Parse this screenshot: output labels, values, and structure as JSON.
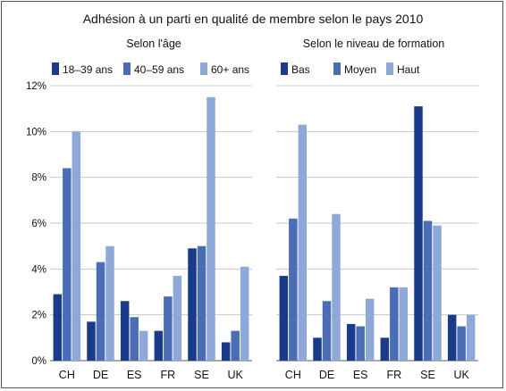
{
  "chart_data": {
    "type": "bar",
    "title": "Adhésion à un parti en qualité de membre selon le pays 2010",
    "yticks": [
      "0%",
      "2%",
      "4%",
      "6%",
      "8%",
      "10%",
      "12%"
    ],
    "ylim": [
      0,
      12
    ],
    "grid": true,
    "categories": [
      "CH",
      "DE",
      "ES",
      "FR",
      "SE",
      "UK"
    ],
    "colors": [
      "#1a3a8a",
      "#4a6db5",
      "#8ea8d8"
    ],
    "panels": [
      {
        "subtitle": "Selon l'âge",
        "series": [
          {
            "name": "18–39 ans",
            "values": [
              2.9,
              1.7,
              2.6,
              1.3,
              4.9,
              0.8
            ]
          },
          {
            "name": "40–59 ans",
            "values": [
              8.4,
              4.3,
              1.9,
              2.8,
              5.0,
              1.3
            ]
          },
          {
            "name": "60+ ans",
            "values": [
              10.0,
              5.0,
              1.3,
              3.7,
              11.5,
              4.1
            ]
          }
        ]
      },
      {
        "subtitle": "Selon le niveau de formation",
        "series": [
          {
            "name": "Bas",
            "values": [
              3.7,
              1.0,
              1.6,
              1.0,
              11.1,
              2.0
            ]
          },
          {
            "name": "Moyen",
            "values": [
              6.2,
              2.6,
              1.5,
              3.2,
              6.1,
              1.5
            ]
          },
          {
            "name": "Haut",
            "values": [
              10.3,
              6.4,
              2.7,
              3.2,
              5.9,
              2.0
            ]
          }
        ]
      }
    ]
  }
}
